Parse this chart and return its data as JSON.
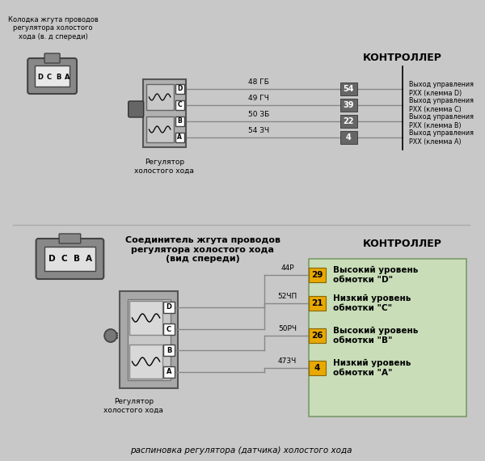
{
  "bg_color": "#c8c8c8",
  "title_text": "распиновка регулятора (датчика) холостого хода",
  "top_section": {
    "connector_label": "Колодка жгута проводов\nрегулятора холостого\nхода (в. д спереди)",
    "controller_label": "КОНТРОЛЛЕР",
    "regulator_label": "Регулятор\nхолостого хода",
    "wires": [
      {
        "wire_label": "48 ГБ",
        "pin_num": "54",
        "desc": "Выход управления\nРХХ (клемма D)"
      },
      {
        "wire_label": "49 ГЧ",
        "pin_num": "39",
        "desc": "Выход управления\nРХХ (клемма С)"
      },
      {
        "wire_label": "50 ЗБ",
        "pin_num": "22",
        "desc": "Выход управления\nРХХ (клемма B)"
      },
      {
        "wire_label": "54 ЗЧ",
        "pin_num": "4",
        "desc": "Выход управления\nРХХ (клемма А)"
      }
    ]
  },
  "bottom_section": {
    "connector_label": "Соединитель жгута проводов\nрегулятора холостого хода\n(вид спереди)",
    "controller_label": "КОНТРОЛЛЕР",
    "regulator_label": "Регулятор\nхолостого хода",
    "wires": [
      {
        "wire_label": "44Р",
        "pin_num": "29",
        "desc": "Высокий уровень\nобмотки \"D\""
      },
      {
        "wire_label": "52ЧП",
        "pin_num": "21",
        "desc": "Низкий уровень\nобмотки \"С\""
      },
      {
        "wire_label": "50РЧ",
        "pin_num": "26",
        "desc": "Высокий уровень\nобмотки \"B\""
      },
      {
        "wire_label": "473Ч",
        "pin_num": "4",
        "desc": "Низкий уровень\nобмотки \"А\""
      }
    ],
    "green_bg": "#c8ddb8",
    "yellow_pin": "#e8a800"
  }
}
